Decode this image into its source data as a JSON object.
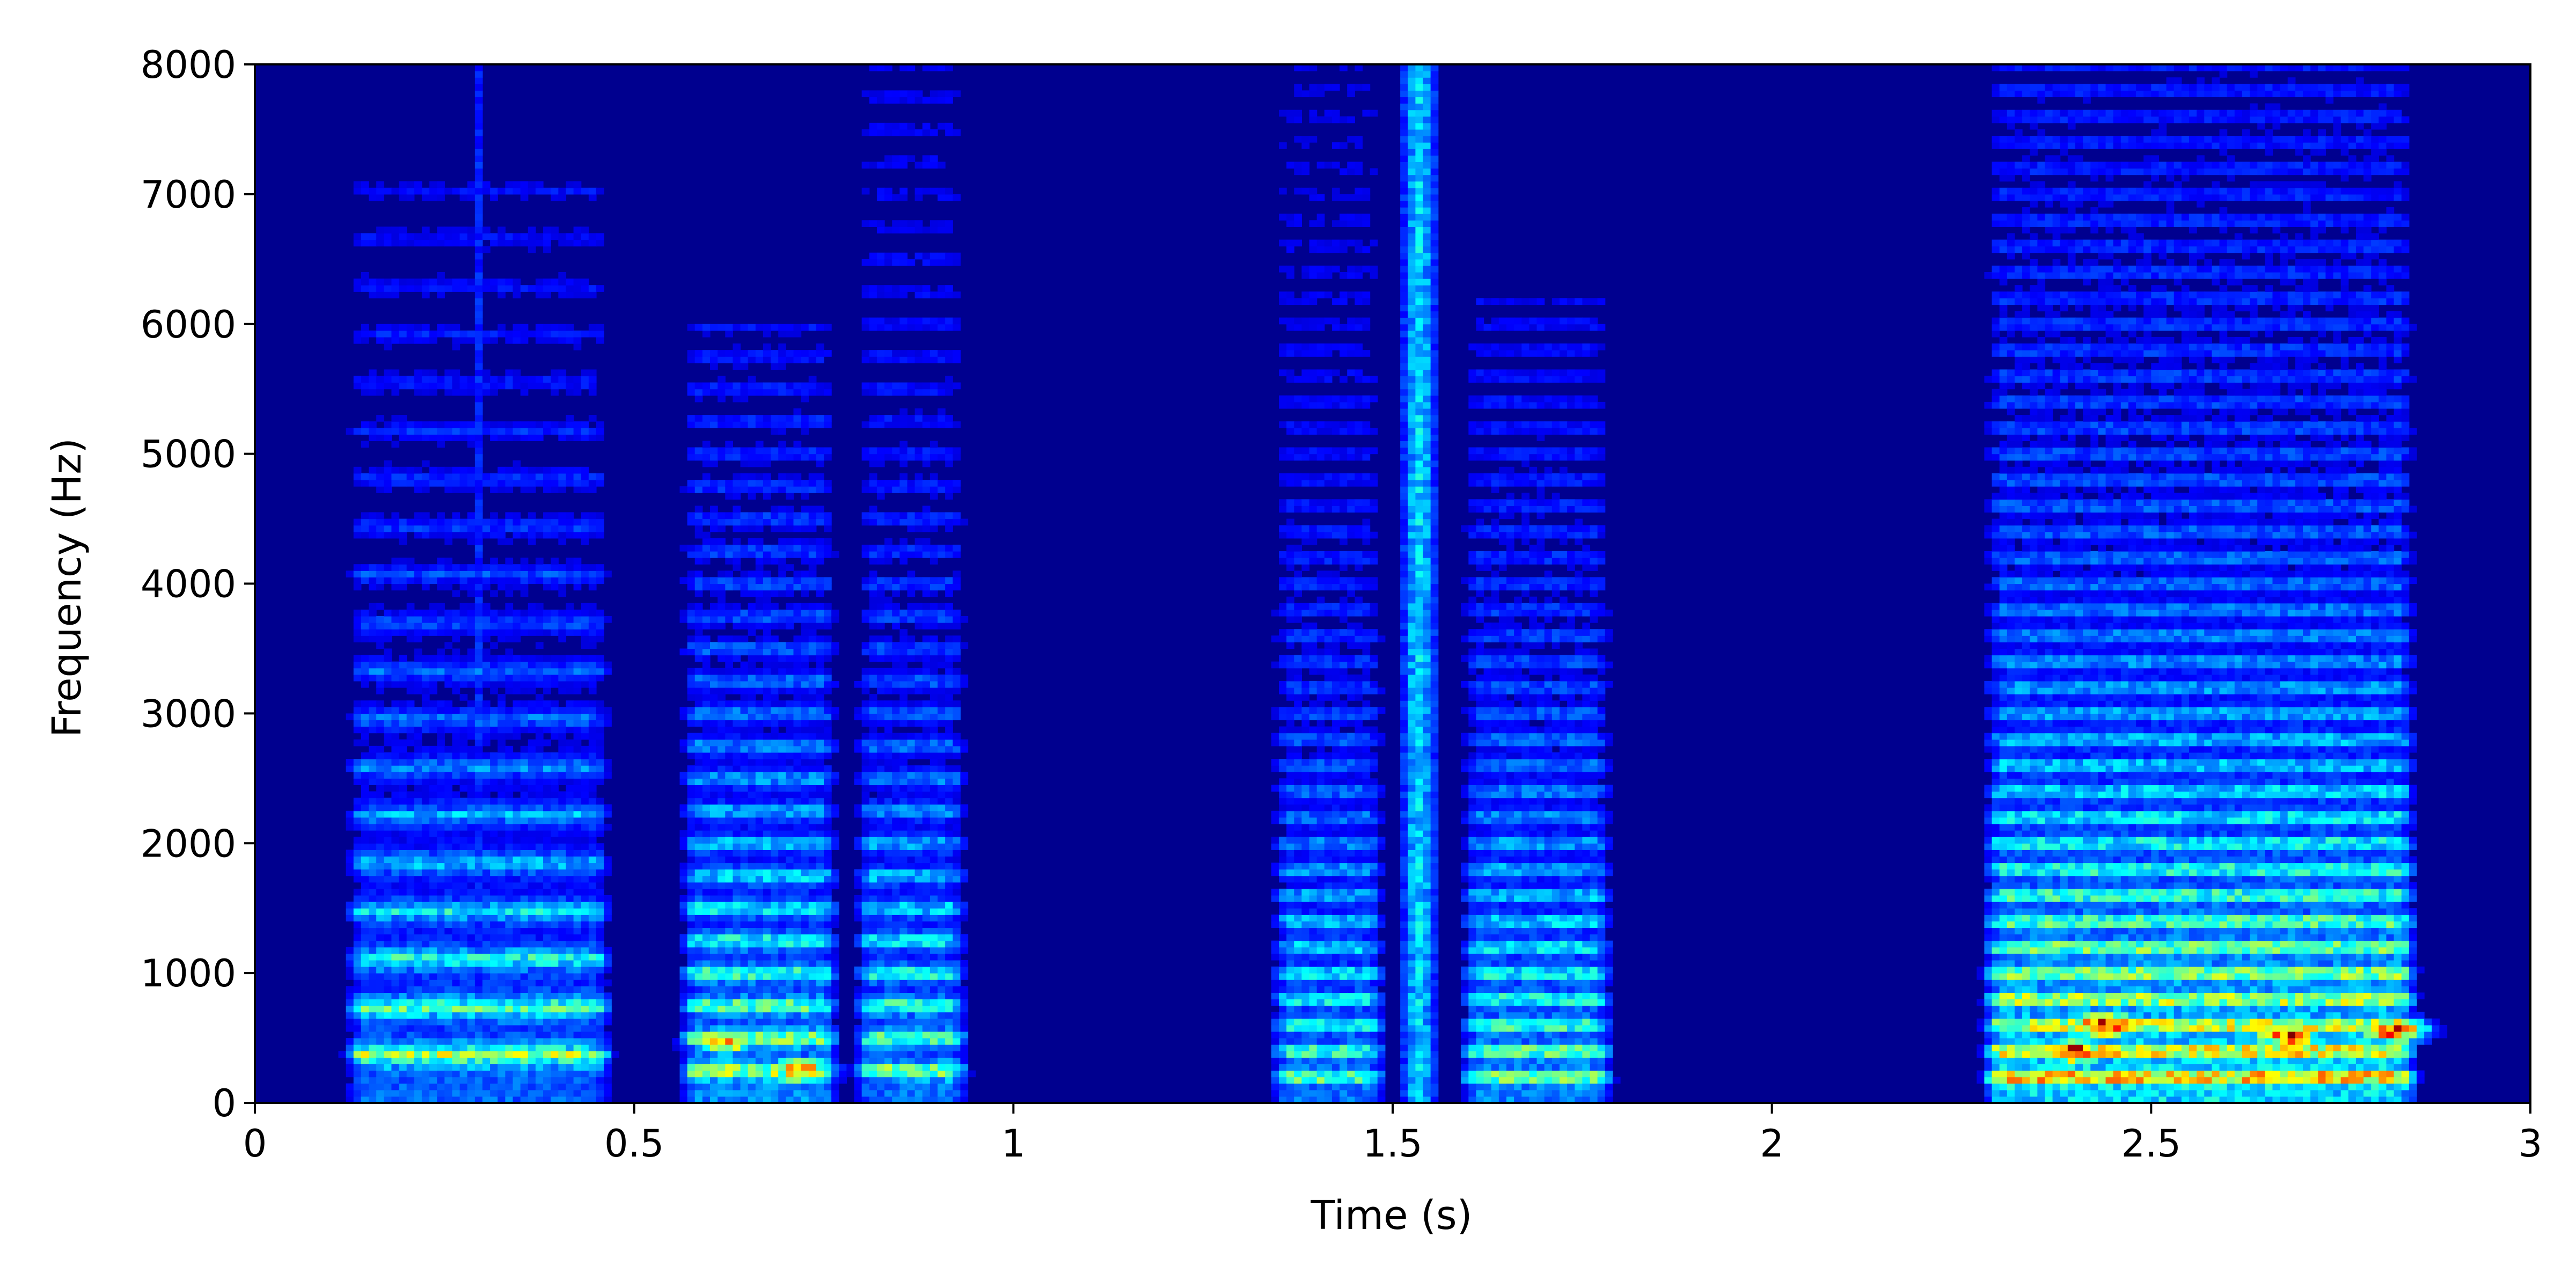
{
  "chart_data": {
    "type": "heatmap",
    "subtype": "spectrogram",
    "title": "",
    "xlabel": "Time (s)",
    "ylabel": "Frequency (Hz)",
    "xlim": [
      0,
      3
    ],
    "ylim": [
      0,
      8000
    ],
    "x_ticks": [
      0,
      0.5,
      1,
      1.5,
      2,
      2.5,
      3
    ],
    "x_tick_labels": [
      "0",
      "0.5",
      "1",
      "1.5",
      "2",
      "2.5",
      "3"
    ],
    "y_ticks": [
      0,
      1000,
      2000,
      3000,
      4000,
      5000,
      6000,
      7000,
      8000
    ],
    "y_tick_labels": [
      "0",
      "1000",
      "2000",
      "3000",
      "4000",
      "5000",
      "6000",
      "7000",
      "8000"
    ],
    "colormap": "jet",
    "background_color": "#00008f",
    "grid": false,
    "legend": false,
    "speech_segments": [
      {
        "t_start": 0.11,
        "t_end": 0.48,
        "f_max": 7200,
        "pitch_hz": 370,
        "peak_level": 0.62
      },
      {
        "t_start": 0.28,
        "t_end": 0.31,
        "f_max": 8000,
        "burst": true,
        "peak_level": 0.55
      },
      {
        "t_start": 0.55,
        "t_end": 0.78,
        "f_max": 6000,
        "pitch_hz": 250,
        "peak_level": 0.72
      },
      {
        "t_start": 0.78,
        "t_end": 0.95,
        "f_max": 8000,
        "pitch_hz": 250,
        "peak_level": 0.66
      },
      {
        "t_start": 1.33,
        "t_end": 1.5,
        "f_max": 8000,
        "pitch_hz": 200,
        "peak_level": 0.64
      },
      {
        "t_start": 1.5,
        "t_end": 1.57,
        "f_max": 8000,
        "burst": true,
        "peak_level": 0.6
      },
      {
        "t_start": 1.58,
        "t_end": 1.8,
        "f_max": 6200,
        "pitch_hz": 200,
        "peak_level": 0.7
      },
      {
        "t_start": 2.27,
        "t_end": 2.86,
        "f_max": 8000,
        "pitch_hz": 200,
        "peak_level": 0.95
      }
    ],
    "hot_spots": [
      {
        "t": 2.44,
        "f": 600,
        "level": 0.95
      },
      {
        "t": 2.4,
        "f": 400,
        "level": 0.85
      },
      {
        "t": 2.68,
        "f": 520,
        "level": 0.82
      },
      {
        "t": 2.82,
        "f": 560,
        "level": 0.8
      },
      {
        "t": 0.62,
        "f": 480,
        "level": 0.75
      },
      {
        "t": 0.72,
        "f": 250,
        "level": 0.72
      }
    ]
  }
}
